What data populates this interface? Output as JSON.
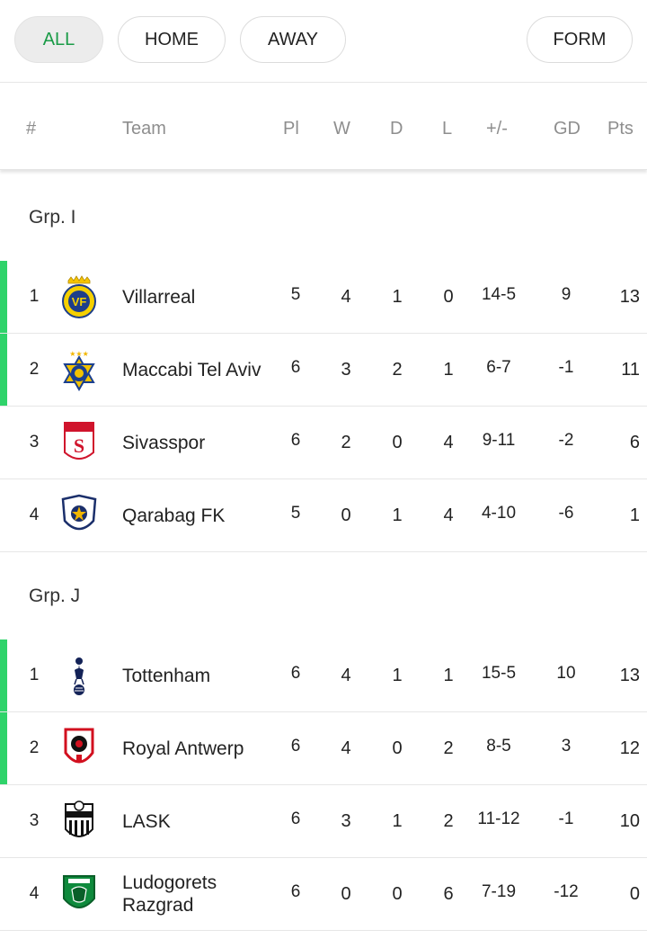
{
  "filters": {
    "all": "ALL",
    "home": "HOME",
    "away": "AWAY",
    "form": "FORM",
    "active": "all"
  },
  "columns": {
    "pos": "#",
    "team": "Team",
    "pl": "Pl",
    "w": "W",
    "d": "D",
    "l": "L",
    "pm": "+/-",
    "gd": "GD",
    "pts": "Pts"
  },
  "colors": {
    "accent": "#1a9b47",
    "qualified": "#2fd36a"
  },
  "groups": [
    {
      "name": "Grp. I",
      "rows": [
        {
          "pos": "1",
          "team": "Villarreal",
          "logo": "villarreal-crest-icon",
          "pl": "5",
          "w": "4",
          "d": "1",
          "l": "0",
          "pm": "14-5",
          "gd": "9",
          "pts": "13",
          "qualified": true
        },
        {
          "pos": "2",
          "team": "Maccabi Tel Aviv",
          "logo": "maccabi-tel-aviv-crest-icon",
          "pl": "6",
          "w": "3",
          "d": "2",
          "l": "1",
          "pm": "6-7",
          "gd": "-1",
          "pts": "11",
          "qualified": true
        },
        {
          "pos": "3",
          "team": "Sivasspor",
          "logo": "sivasspor-crest-icon",
          "pl": "6",
          "w": "2",
          "d": "0",
          "l": "4",
          "pm": "9-11",
          "gd": "-2",
          "pts": "6",
          "qualified": false
        },
        {
          "pos": "4",
          "team": "Qarabag FK",
          "logo": "qarabag-crest-icon",
          "pl": "5",
          "w": "0",
          "d": "1",
          "l": "4",
          "pm": "4-10",
          "gd": "-6",
          "pts": "1",
          "qualified": false
        }
      ]
    },
    {
      "name": "Grp. J",
      "rows": [
        {
          "pos": "1",
          "team": "Tottenham",
          "logo": "tottenham-crest-icon",
          "pl": "6",
          "w": "4",
          "d": "1",
          "l": "1",
          "pm": "15-5",
          "gd": "10",
          "pts": "13",
          "qualified": true
        },
        {
          "pos": "2",
          "team": "Royal Antwerp",
          "logo": "royal-antwerp-crest-icon",
          "pl": "6",
          "w": "4",
          "d": "0",
          "l": "2",
          "pm": "8-5",
          "gd": "3",
          "pts": "12",
          "qualified": true
        },
        {
          "pos": "3",
          "team": "LASK",
          "logo": "lask-crest-icon",
          "pl": "6",
          "w": "3",
          "d": "1",
          "l": "2",
          "pm": "11-12",
          "gd": "-1",
          "pts": "10",
          "qualified": false
        },
        {
          "pos": "4",
          "team": "Ludogorets Razgrad",
          "logo": "ludogorets-crest-icon",
          "pl": "6",
          "w": "0",
          "d": "0",
          "l": "6",
          "pm": "7-19",
          "gd": "-12",
          "pts": "0",
          "qualified": false
        }
      ]
    }
  ]
}
